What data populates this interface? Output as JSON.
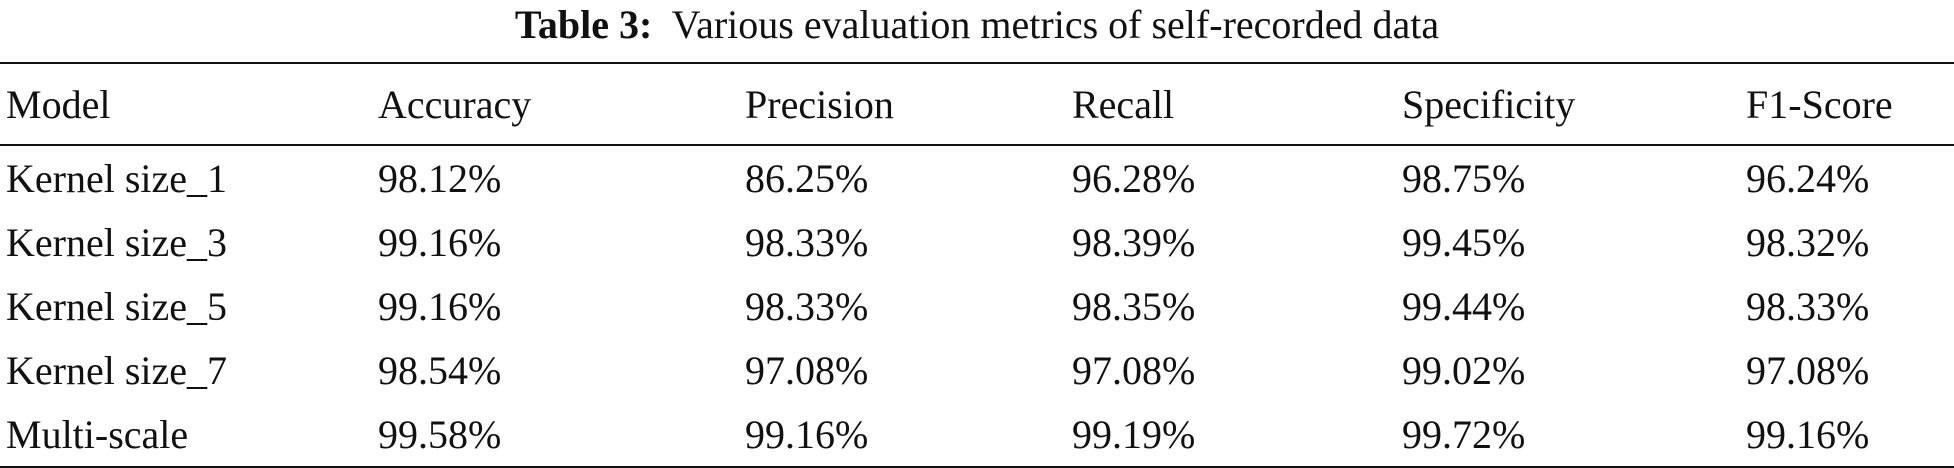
{
  "caption": {
    "label": "Table 3:",
    "text": "Various evaluation metrics of self-recorded data"
  },
  "table": {
    "headers": [
      "Model",
      "Accuracy",
      "Precision",
      "Recall",
      "Specificity",
      "F1-Score"
    ],
    "rows": [
      [
        "Kernel size_1",
        "98.12%",
        "86.25%",
        "96.28%",
        "98.75%",
        "96.24%"
      ],
      [
        "Kernel size_3",
        "99.16%",
        "98.33%",
        "98.39%",
        "99.45%",
        "98.32%"
      ],
      [
        "Kernel size_5",
        "99.16%",
        "98.33%",
        "98.35%",
        "99.44%",
        "98.33%"
      ],
      [
        "Kernel size_7",
        "98.54%",
        "97.08%",
        "97.08%",
        "99.02%",
        "97.08%"
      ],
      [
        "Multi-scale",
        "99.58%",
        "99.16%",
        "99.19%",
        "99.72%",
        "99.16%"
      ]
    ]
  }
}
